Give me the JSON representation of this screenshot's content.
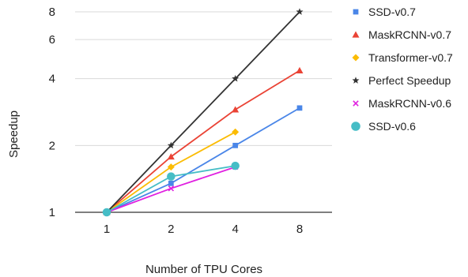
{
  "chart_data": {
    "type": "line",
    "title": "",
    "xlabel": "Number of TPU Cores",
    "ylabel": "Speedup",
    "x_scale": "log2",
    "y_scale": "log2",
    "xlim": [
      1,
      8
    ],
    "ylim": [
      1,
      8
    ],
    "x_ticks": [
      "1",
      "2",
      "4",
      "8"
    ],
    "y_ticks": [
      "1",
      "2",
      "4",
      "6",
      "8"
    ],
    "grid": "horizontal",
    "legend_position": "right",
    "series": [
      {
        "name": "SSD-v0.7",
        "color": "#4a86e8",
        "marker": "square",
        "x": [
          1,
          2,
          4,
          8
        ],
        "y": [
          1,
          1.35,
          2.0,
          2.95
        ]
      },
      {
        "name": "MaskRCNN-v0.7",
        "color": "#ea4335",
        "marker": "triangle",
        "x": [
          1,
          2,
          4,
          8
        ],
        "y": [
          1,
          1.78,
          2.9,
          4.35
        ]
      },
      {
        "name": "Transformer-v0.7",
        "color": "#fbbc04",
        "marker": "diamond",
        "x": [
          1,
          2,
          4
        ],
        "y": [
          1,
          1.6,
          2.3
        ]
      },
      {
        "name": "Perfect Speedup",
        "color": "#333333",
        "marker": "star",
        "x": [
          1,
          2,
          4,
          8
        ],
        "y": [
          1,
          2,
          4,
          8
        ]
      },
      {
        "name": "MaskRCNN-v0.6",
        "color": "#e020e0",
        "marker": "x",
        "x": [
          1,
          2,
          4
        ],
        "y": [
          1,
          1.28,
          1.6
        ]
      },
      {
        "name": "SSD-v0.6",
        "color": "#46bdc6",
        "marker": "circle",
        "x": [
          1,
          2,
          4
        ],
        "y": [
          1,
          1.45,
          1.62
        ]
      }
    ]
  }
}
